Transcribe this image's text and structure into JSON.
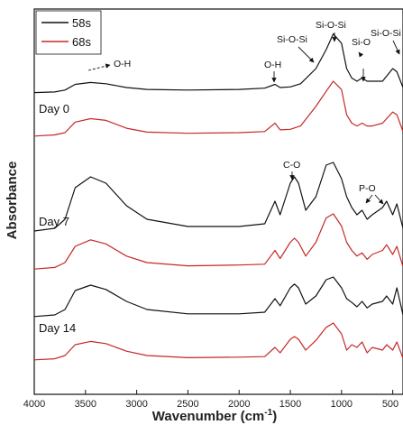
{
  "chart_data": {
    "type": "line",
    "xlabel": "Wavenumber (cm",
    "xlabel_sup": "-1",
    "xlabel_close": ")",
    "ylabel": "Absorbance",
    "xlim": [
      4000,
      400
    ],
    "x_ticks": [
      4000,
      3500,
      3000,
      2500,
      2000,
      1500,
      1000,
      500
    ],
    "legend": {
      "position": "top-left",
      "entries": [
        {
          "label": "58s",
          "color": "#111111"
        },
        {
          "label": "68s",
          "color": "#c62828"
        }
      ]
    },
    "groups": [
      {
        "label": "Day 0",
        "series": [
          {
            "color": "#111111",
            "x": [
              4000,
              3800,
              3700,
              3600,
              3450,
              3300,
              3100,
              2900,
              2500,
              2000,
              1750,
              1650,
              1600,
              1500,
              1400,
              1250,
              1150,
              1080,
              1000,
              950,
              900,
              850,
              800,
              750,
              700,
              600,
              500,
              460,
              400
            ],
            "y": [
              0.02,
              0.03,
              0.06,
              0.15,
              0.18,
              0.16,
              0.1,
              0.07,
              0.06,
              0.07,
              0.09,
              0.15,
              0.1,
              0.11,
              0.16,
              0.4,
              0.7,
              0.95,
              0.8,
              0.4,
              0.25,
              0.2,
              0.25,
              0.2,
              0.2,
              0.2,
              0.4,
              0.35,
              0.1
            ]
          },
          {
            "color": "#c62828",
            "x": [
              4000,
              3800,
              3700,
              3600,
              3450,
              3300,
              3100,
              2900,
              2500,
              2000,
              1750,
              1650,
              1600,
              1500,
              1400,
              1250,
              1150,
              1080,
              1000,
              950,
              900,
              850,
              800,
              750,
              700,
              600,
              500,
              460,
              400
            ],
            "y": [
              0.02,
              0.04,
              0.08,
              0.27,
              0.33,
              0.3,
              0.16,
              0.09,
              0.07,
              0.08,
              0.1,
              0.25,
              0.13,
              0.14,
              0.2,
              0.55,
              0.82,
              1.0,
              0.85,
              0.4,
              0.25,
              0.2,
              0.25,
              0.2,
              0.2,
              0.25,
              0.45,
              0.4,
              0.1
            ]
          }
        ]
      },
      {
        "label": "Day 7",
        "series": [
          {
            "color": "#111111",
            "x": [
              4000,
              3800,
              3700,
              3600,
              3450,
              3300,
              3100,
              2900,
              2500,
              2000,
              1750,
              1650,
              1600,
              1500,
              1460,
              1420,
              1350,
              1250,
              1150,
              1080,
              1000,
              950,
              900,
              850,
              800,
              750,
              700,
              600,
              560,
              500,
              460,
              400
            ],
            "y": [
              0.02,
              0.05,
              0.15,
              0.5,
              0.62,
              0.55,
              0.3,
              0.15,
              0.07,
              0.07,
              0.1,
              0.35,
              0.2,
              0.55,
              0.62,
              0.55,
              0.25,
              0.4,
              0.75,
              0.78,
              0.6,
              0.4,
              0.28,
              0.2,
              0.25,
              0.15,
              0.2,
              0.28,
              0.35,
              0.2,
              0.32,
              0.05
            ]
          },
          {
            "color": "#c62828",
            "x": [
              4000,
              3800,
              3700,
              3600,
              3450,
              3300,
              3100,
              2900,
              2500,
              2000,
              1750,
              1650,
              1600,
              1500,
              1460,
              1420,
              1350,
              1250,
              1150,
              1080,
              1000,
              950,
              900,
              850,
              800,
              750,
              700,
              600,
              560,
              500,
              460,
              400
            ],
            "y": [
              0.02,
              0.04,
              0.1,
              0.3,
              0.38,
              0.33,
              0.18,
              0.1,
              0.06,
              0.07,
              0.08,
              0.25,
              0.15,
              0.35,
              0.4,
              0.35,
              0.18,
              0.35,
              0.65,
              0.7,
              0.55,
              0.35,
              0.25,
              0.18,
              0.22,
              0.14,
              0.2,
              0.25,
              0.32,
              0.2,
              0.3,
              0.05
            ]
          }
        ]
      },
      {
        "label": "Day 14",
        "series": [
          {
            "color": "#111111",
            "x": [
              4000,
              3800,
              3700,
              3600,
              3450,
              3300,
              3100,
              2900,
              2500,
              2000,
              1750,
              1650,
              1600,
              1500,
              1460,
              1420,
              1350,
              1250,
              1150,
              1080,
              1000,
              950,
              900,
              850,
              800,
              750,
              700,
              600,
              560,
              500,
              460,
              400
            ],
            "y": [
              0.02,
              0.05,
              0.15,
              0.5,
              0.6,
              0.52,
              0.3,
              0.15,
              0.07,
              0.07,
              0.1,
              0.35,
              0.22,
              0.55,
              0.62,
              0.55,
              0.25,
              0.4,
              0.7,
              0.75,
              0.55,
              0.35,
              0.28,
              0.2,
              0.3,
              0.18,
              0.25,
              0.3,
              0.4,
              0.25,
              0.55,
              0.05
            ]
          },
          {
            "color": "#c62828",
            "x": [
              4000,
              3800,
              3700,
              3600,
              3450,
              3300,
              3100,
              2900,
              2500,
              2000,
              1750,
              1650,
              1600,
              1500,
              1460,
              1420,
              1350,
              1250,
              1150,
              1080,
              1000,
              950,
              900,
              850,
              800,
              750,
              700,
              600,
              560,
              500,
              460,
              400
            ],
            "y": [
              0.02,
              0.04,
              0.1,
              0.3,
              0.36,
              0.32,
              0.18,
              0.1,
              0.06,
              0.07,
              0.08,
              0.25,
              0.15,
              0.4,
              0.45,
              0.4,
              0.2,
              0.38,
              0.62,
              0.7,
              0.5,
              0.2,
              0.3,
              0.25,
              0.35,
              0.15,
              0.25,
              0.2,
              0.3,
              0.2,
              0.35,
              0.05
            ]
          }
        ]
      }
    ],
    "annotations": [
      {
        "text": "O-H"
      },
      {
        "text": "O-H"
      },
      {
        "text": "Si-O-Si"
      },
      {
        "text": "Si-O-Si"
      },
      {
        "text": "Si-O"
      },
      {
        "text": "Si-O-Si"
      },
      {
        "text": "C-O"
      },
      {
        "text": "P-O"
      }
    ]
  }
}
